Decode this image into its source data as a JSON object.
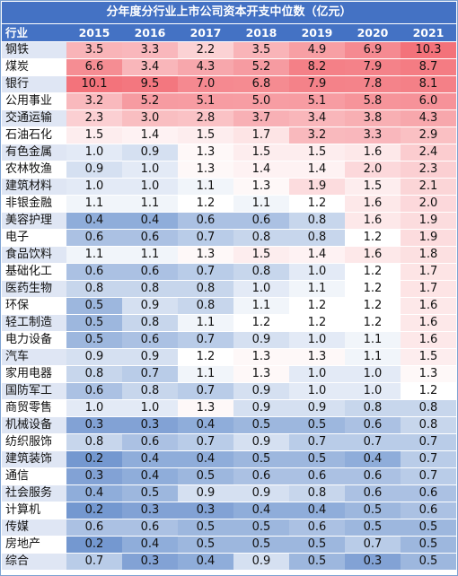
{
  "chart_data": {
    "type": "table",
    "title": "分年度分行业上市公司资本开支中位数（亿元）",
    "header_label": "行业",
    "columns": [
      "2015",
      "2016",
      "2017",
      "2018",
      "2019",
      "2020",
      "2021"
    ],
    "rows": [
      {
        "industry": "钢铁",
        "values": [
          3.5,
          3.3,
          2.2,
          3.5,
          4.9,
          6.9,
          10.3
        ]
      },
      {
        "industry": "煤炭",
        "values": [
          6.6,
          3.4,
          4.3,
          5.2,
          8.2,
          7.9,
          8.7
        ]
      },
      {
        "industry": "银行",
        "values": [
          10.1,
          9.5,
          7.0,
          6.8,
          7.9,
          7.8,
          8.1
        ]
      },
      {
        "industry": "公用事业",
        "values": [
          3.2,
          5.2,
          5.1,
          5.0,
          5.1,
          5.8,
          6.0
        ]
      },
      {
        "industry": "交通运输",
        "values": [
          2.3,
          3.0,
          2.8,
          3.7,
          3.4,
          3.8,
          4.3
        ]
      },
      {
        "industry": "石油石化",
        "values": [
          1.5,
          1.4,
          1.5,
          1.7,
          3.2,
          3.3,
          2.9
        ]
      },
      {
        "industry": "有色金属",
        "values": [
          1.0,
          0.9,
          1.3,
          1.5,
          1.5,
          1.6,
          2.4
        ]
      },
      {
        "industry": "农林牧渔",
        "values": [
          0.9,
          1.0,
          1.3,
          1.4,
          1.4,
          2.0,
          2.3
        ]
      },
      {
        "industry": "建筑材料",
        "values": [
          1.0,
          1.0,
          1.1,
          1.3,
          1.9,
          1.5,
          2.1
        ]
      },
      {
        "industry": "非银金融",
        "values": [
          1.1,
          1.1,
          1.2,
          1.1,
          1.2,
          1.6,
          2.0
        ]
      },
      {
        "industry": "美容护理",
        "values": [
          0.4,
          0.4,
          0.6,
          0.6,
          0.8,
          1.6,
          1.9
        ]
      },
      {
        "industry": "电子",
        "values": [
          0.6,
          0.6,
          0.7,
          0.8,
          0.8,
          1.2,
          1.9
        ]
      },
      {
        "industry": "食品饮料",
        "values": [
          1.1,
          1.1,
          1.3,
          1.5,
          1.4,
          1.6,
          1.8
        ]
      },
      {
        "industry": "基础化工",
        "values": [
          0.6,
          0.6,
          0.7,
          0.8,
          1.0,
          1.2,
          1.7
        ]
      },
      {
        "industry": "医药生物",
        "values": [
          0.8,
          0.8,
          0.8,
          1.0,
          1.1,
          1.2,
          1.7
        ]
      },
      {
        "industry": "环保",
        "values": [
          0.5,
          0.9,
          0.8,
          1.1,
          1.2,
          1.2,
          1.6
        ]
      },
      {
        "industry": "轻工制造",
        "values": [
          0.5,
          0.8,
          1.1,
          1.2,
          1.2,
          1.2,
          1.6
        ]
      },
      {
        "industry": "电力设备",
        "values": [
          0.5,
          0.6,
          0.7,
          0.9,
          1.0,
          1.1,
          1.6
        ]
      },
      {
        "industry": "汽车",
        "values": [
          0.9,
          0.9,
          1.2,
          1.3,
          1.3,
          1.1,
          1.5
        ]
      },
      {
        "industry": "家用电器",
        "values": [
          0.8,
          0.7,
          1.1,
          1.3,
          1.0,
          1.0,
          1.3
        ]
      },
      {
        "industry": "国防军工",
        "values": [
          0.6,
          0.8,
          0.7,
          0.9,
          1.0,
          1.0,
          1.2
        ]
      },
      {
        "industry": "商贸零售",
        "values": [
          1.0,
          1.0,
          1.3,
          0.9,
          0.9,
          0.8,
          0.8
        ]
      },
      {
        "industry": "机械设备",
        "values": [
          0.3,
          0.3,
          0.4,
          0.5,
          0.5,
          0.6,
          0.8
        ]
      },
      {
        "industry": "纺织服饰",
        "values": [
          0.8,
          0.6,
          0.7,
          0.9,
          0.7,
          0.7,
          0.7
        ]
      },
      {
        "industry": "建筑装饰",
        "values": [
          0.2,
          0.4,
          0.4,
          0.5,
          0.5,
          0.4,
          0.7
        ]
      },
      {
        "industry": "通信",
        "values": [
          0.3,
          0.4,
          0.5,
          0.6,
          0.6,
          0.6,
          0.7
        ]
      },
      {
        "industry": "社会服务",
        "values": [
          0.4,
          0.5,
          0.9,
          0.9,
          0.8,
          0.6,
          0.6
        ]
      },
      {
        "industry": "计算机",
        "values": [
          0.2,
          0.3,
          0.3,
          0.4,
          0.4,
          0.5,
          0.6
        ]
      },
      {
        "industry": "传媒",
        "values": [
          0.6,
          0.6,
          0.5,
          0.5,
          0.6,
          0.5,
          0.5
        ]
      },
      {
        "industry": "房地产",
        "values": [
          0.2,
          0.4,
          0.5,
          0.5,
          0.5,
          0.7,
          0.5
        ]
      },
      {
        "industry": "综合",
        "values": [
          0.7,
          0.3,
          0.4,
          0.9,
          0.5,
          0.3,
          0.5
        ]
      }
    ],
    "color_scale": {
      "low": "#5b86c8",
      "mid": "#ffffff",
      "high": "#f3727a",
      "mid_value": 1.2
    }
  }
}
